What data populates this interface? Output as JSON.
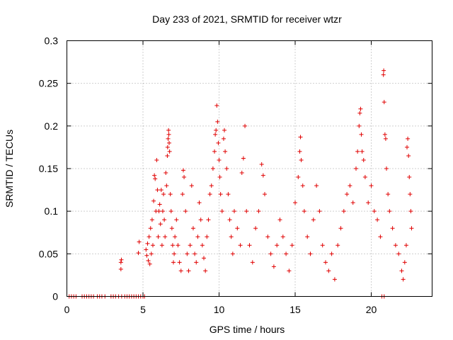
{
  "chart_data": {
    "type": "scatter",
    "title": "Day 233 of 2021, SRMTID for receiver wtzr",
    "xlabel": "GPS time / hours",
    "ylabel": "SRMTID / TECUs",
    "xlim": [
      0,
      24
    ],
    "ylim": [
      0,
      0.3
    ],
    "x_ticks": [
      0,
      5,
      10,
      15,
      20
    ],
    "x_tick_labels": [
      "0",
      "5",
      "10",
      "15",
      "20"
    ],
    "y_ticks": [
      0,
      0.05,
      0.1,
      0.15,
      0.2,
      0.25,
      0.3
    ],
    "y_tick_labels": [
      "0",
      "0.05",
      "0.1",
      "0.15",
      "0.2",
      "0.25",
      "0.3"
    ],
    "grid": true,
    "marker": "+",
    "series": [
      {
        "name": "SRMTID",
        "color": "#e00000",
        "points": [
          [
            0.15,
            0.0
          ],
          [
            0.3,
            0.0
          ],
          [
            0.45,
            0.0
          ],
          [
            0.6,
            0.0
          ],
          [
            1.0,
            0.0
          ],
          [
            1.15,
            0.0
          ],
          [
            1.3,
            0.0
          ],
          [
            1.45,
            0.0
          ],
          [
            1.6,
            0.0
          ],
          [
            1.75,
            0.0
          ],
          [
            2.0,
            0.0
          ],
          [
            2.15,
            0.0
          ],
          [
            2.3,
            0.0
          ],
          [
            2.5,
            0.0
          ],
          [
            2.9,
            0.0
          ],
          [
            3.05,
            0.0
          ],
          [
            3.2,
            0.0
          ],
          [
            3.4,
            0.0
          ],
          [
            3.6,
            0.0
          ],
          [
            3.8,
            0.0
          ],
          [
            3.95,
            0.0
          ],
          [
            4.1,
            0.0
          ],
          [
            4.25,
            0.0
          ],
          [
            4.4,
            0.0
          ],
          [
            4.55,
            0.0
          ],
          [
            4.7,
            0.0
          ],
          [
            4.85,
            0.0
          ],
          [
            5.0,
            0.0
          ],
          [
            5.1,
            0.0
          ],
          [
            20.7,
            0.0
          ],
          [
            20.85,
            0.0
          ],
          [
            3.55,
            0.032
          ],
          [
            3.55,
            0.04
          ],
          [
            3.58,
            0.043
          ],
          [
            4.7,
            0.051
          ],
          [
            4.75,
            0.064
          ],
          [
            5.2,
            0.055
          ],
          [
            5.25,
            0.048
          ],
          [
            5.3,
            0.062
          ],
          [
            5.35,
            0.042
          ],
          [
            5.4,
            0.07
          ],
          [
            5.45,
            0.038
          ],
          [
            5.5,
            0.08
          ],
          [
            5.55,
            0.05
          ],
          [
            5.6,
            0.09
          ],
          [
            5.65,
            0.06
          ],
          [
            5.7,
            0.112
          ],
          [
            5.75,
            0.142
          ],
          [
            5.8,
            0.138
          ],
          [
            5.85,
            0.1
          ],
          [
            5.9,
            0.16
          ],
          [
            5.95,
            0.125
          ],
          [
            6.0,
            0.07
          ],
          [
            6.05,
            0.1
          ],
          [
            6.1,
            0.108
          ],
          [
            6.15,
            0.085
          ],
          [
            6.2,
            0.125
          ],
          [
            6.25,
            0.06
          ],
          [
            6.3,
            0.1
          ],
          [
            6.35,
            0.12
          ],
          [
            6.4,
            0.09
          ],
          [
            6.45,
            0.07
          ],
          [
            6.5,
            0.145
          ],
          [
            6.55,
            0.13
          ],
          [
            6.6,
            0.165
          ],
          [
            6.62,
            0.175
          ],
          [
            6.65,
            0.185
          ],
          [
            6.68,
            0.195
          ],
          [
            6.7,
            0.19
          ],
          [
            6.72,
            0.18
          ],
          [
            6.75,
            0.17
          ],
          [
            6.8,
            0.12
          ],
          [
            6.85,
            0.1
          ],
          [
            6.9,
            0.08
          ],
          [
            6.95,
            0.06
          ],
          [
            7.0,
            0.04
          ],
          [
            7.05,
            0.05
          ],
          [
            7.1,
            0.07
          ],
          [
            7.2,
            0.09
          ],
          [
            7.3,
            0.06
          ],
          [
            7.4,
            0.04
          ],
          [
            7.5,
            0.03
          ],
          [
            7.6,
            0.12
          ],
          [
            7.65,
            0.148
          ],
          [
            7.7,
            0.14
          ],
          [
            7.8,
            0.1
          ],
          [
            7.9,
            0.05
          ],
          [
            8.0,
            0.03
          ],
          [
            8.1,
            0.06
          ],
          [
            8.2,
            0.13
          ],
          [
            8.3,
            0.08
          ],
          [
            8.4,
            0.05
          ],
          [
            8.5,
            0.04
          ],
          [
            8.6,
            0.07
          ],
          [
            8.7,
            0.11
          ],
          [
            8.8,
            0.09
          ],
          [
            8.9,
            0.06
          ],
          [
            9.0,
            0.045
          ],
          [
            9.1,
            0.03
          ],
          [
            9.2,
            0.07
          ],
          [
            9.3,
            0.09
          ],
          [
            9.4,
            0.12
          ],
          [
            9.5,
            0.13
          ],
          [
            9.6,
            0.15
          ],
          [
            9.7,
            0.17
          ],
          [
            9.75,
            0.19
          ],
          [
            9.8,
            0.195
          ],
          [
            9.85,
            0.224
          ],
          [
            9.9,
            0.205
          ],
          [
            9.95,
            0.18
          ],
          [
            10.0,
            0.16
          ],
          [
            10.05,
            0.14
          ],
          [
            10.1,
            0.12
          ],
          [
            10.2,
            0.1
          ],
          [
            10.3,
            0.185
          ],
          [
            10.35,
            0.195
          ],
          [
            10.4,
            0.17
          ],
          [
            10.5,
            0.15
          ],
          [
            10.6,
            0.12
          ],
          [
            10.7,
            0.09
          ],
          [
            10.8,
            0.07
          ],
          [
            10.9,
            0.05
          ],
          [
            11.0,
            0.1
          ],
          [
            11.2,
            0.08
          ],
          [
            11.4,
            0.06
          ],
          [
            11.5,
            0.145
          ],
          [
            11.6,
            0.162
          ],
          [
            11.7,
            0.2
          ],
          [
            11.8,
            0.1
          ],
          [
            12.0,
            0.06
          ],
          [
            12.2,
            0.04
          ],
          [
            12.4,
            0.08
          ],
          [
            12.6,
            0.1
          ],
          [
            12.8,
            0.155
          ],
          [
            12.9,
            0.142
          ],
          [
            13.0,
            0.12
          ],
          [
            13.2,
            0.07
          ],
          [
            13.4,
            0.05
          ],
          [
            13.6,
            0.035
          ],
          [
            13.8,
            0.06
          ],
          [
            14.0,
            0.09
          ],
          [
            14.2,
            0.07
          ],
          [
            14.4,
            0.05
          ],
          [
            14.6,
            0.03
          ],
          [
            14.8,
            0.06
          ],
          [
            15.0,
            0.11
          ],
          [
            15.2,
            0.14
          ],
          [
            15.3,
            0.17
          ],
          [
            15.35,
            0.187
          ],
          [
            15.4,
            0.16
          ],
          [
            15.5,
            0.13
          ],
          [
            15.6,
            0.1
          ],
          [
            15.8,
            0.07
          ],
          [
            16.0,
            0.05
          ],
          [
            16.2,
            0.09
          ],
          [
            16.4,
            0.13
          ],
          [
            16.6,
            0.1
          ],
          [
            16.8,
            0.06
          ],
          [
            17.0,
            0.04
          ],
          [
            17.2,
            0.03
          ],
          [
            17.4,
            0.05
          ],
          [
            17.6,
            0.02
          ],
          [
            17.8,
            0.06
          ],
          [
            18.0,
            0.08
          ],
          [
            18.2,
            0.1
          ],
          [
            18.4,
            0.12
          ],
          [
            18.6,
            0.13
          ],
          [
            18.8,
            0.11
          ],
          [
            19.0,
            0.15
          ],
          [
            19.1,
            0.17
          ],
          [
            19.2,
            0.2
          ],
          [
            19.25,
            0.215
          ],
          [
            19.3,
            0.22
          ],
          [
            19.35,
            0.19
          ],
          [
            19.4,
            0.17
          ],
          [
            19.5,
            0.16
          ],
          [
            19.6,
            0.14
          ],
          [
            19.8,
            0.11
          ],
          [
            20.0,
            0.13
          ],
          [
            20.2,
            0.1
          ],
          [
            20.4,
            0.09
          ],
          [
            20.6,
            0.07
          ],
          [
            20.8,
            0.26
          ],
          [
            20.82,
            0.265
          ],
          [
            20.85,
            0.228
          ],
          [
            20.9,
            0.19
          ],
          [
            20.95,
            0.185
          ],
          [
            21.0,
            0.15
          ],
          [
            21.1,
            0.12
          ],
          [
            21.2,
            0.1
          ],
          [
            21.4,
            0.08
          ],
          [
            21.6,
            0.06
          ],
          [
            21.8,
            0.05
          ],
          [
            22.0,
            0.03
          ],
          [
            22.1,
            0.02
          ],
          [
            22.2,
            0.04
          ],
          [
            22.3,
            0.06
          ],
          [
            22.35,
            0.175
          ],
          [
            22.4,
            0.185
          ],
          [
            22.45,
            0.165
          ],
          [
            22.5,
            0.14
          ],
          [
            22.55,
            0.12
          ],
          [
            22.6,
            0.1
          ],
          [
            22.65,
            0.08
          ]
        ]
      }
    ]
  }
}
